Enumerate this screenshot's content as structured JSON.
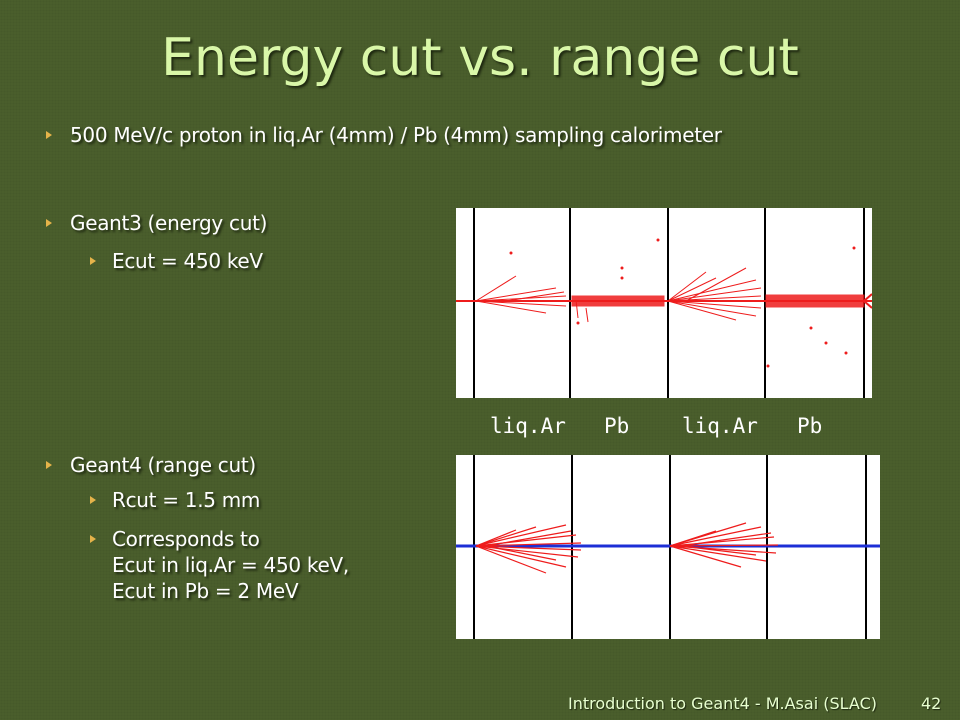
{
  "title": "Energy cut vs. range cut",
  "bullets": {
    "intro": "500 MeV/c proton in liq.Ar (4mm) / Pb (4mm) sampling calorimeter",
    "geant3": "Geant3 (energy cut)",
    "geant3_ecut": "Ecut = 450 keV",
    "geant4": "Geant4 (range cut)",
    "geant4_rcut": "Rcut = 1.5 mm",
    "geant4_corr_line1": "Corresponds to",
    "geant4_corr_line2": "Ecut in liq.Ar = 450 keV,",
    "geant4_corr_line3": "Ecut in Pb = 2 MeV"
  },
  "layers": [
    "liq.Ar",
    "Pb",
    "liq.Ar",
    "Pb"
  ],
  "footer": {
    "text": "Introduction to Geant4 - M.Asai (SLAC)",
    "page": "42"
  },
  "colors": {
    "background": "#4a5e2c",
    "title": "#d9f7a8",
    "bullet_marker": "#e5b34a",
    "track_red": "#ee1c1c",
    "track_blue": "#1d2fd6"
  }
}
